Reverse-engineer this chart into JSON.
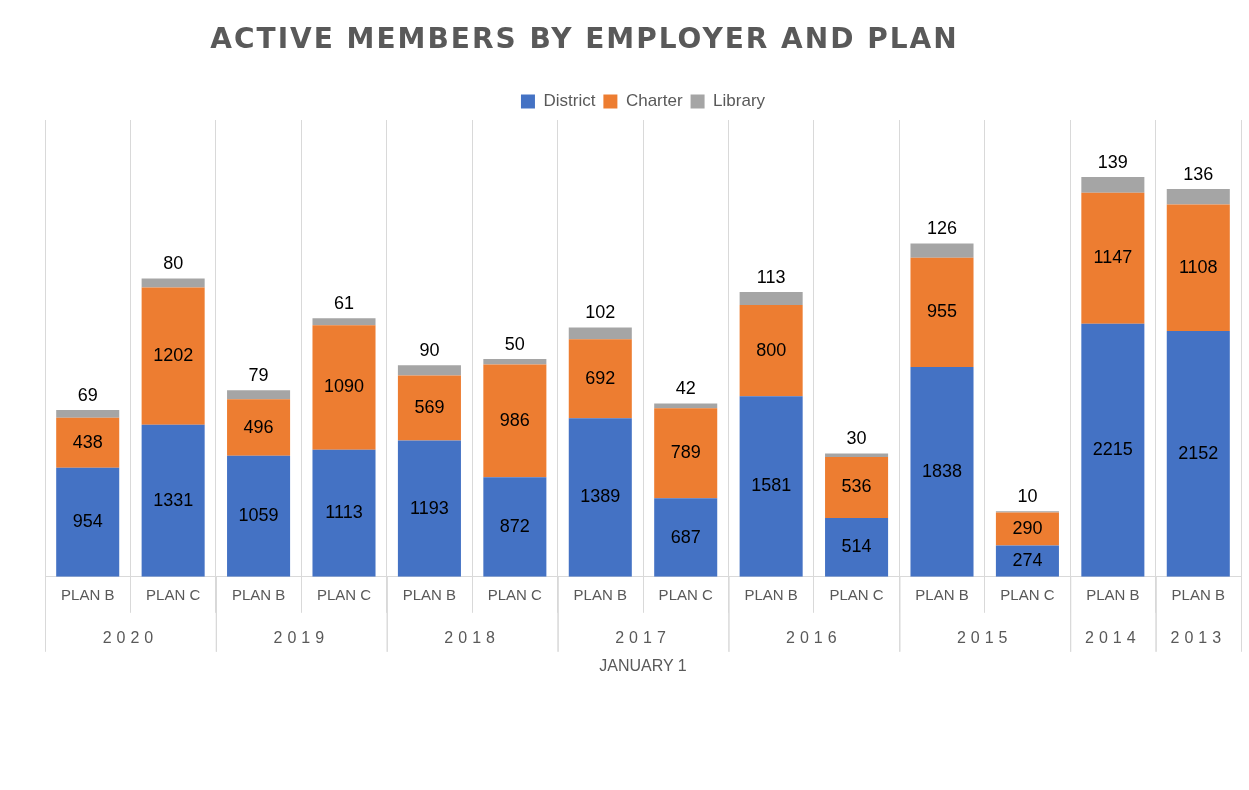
{
  "chart_data": {
    "type": "bar",
    "title": "ACTIVE MEMBERS BY EMPLOYER AND PLAN",
    "xlabel": "JANUARY 1",
    "categories": [
      "PLAN B",
      "PLAN C",
      "PLAN B",
      "PLAN C",
      "PLAN B",
      "PLAN C",
      "PLAN B",
      "PLAN C",
      "PLAN B",
      "PLAN C",
      "PLAN B",
      "PLAN C",
      "PLAN B",
      "PLAN B"
    ],
    "annotations": [
      "2020",
      "2019",
      "2018",
      "2017",
      "2016",
      "2015",
      "2014",
      "2013"
    ],
    "stacked": true,
    "data_labels": true,
    "grid": "x",
    "legend": "top",
    "series": [
      {
        "name": "District",
        "color": "#4472c4",
        "values": [
          954,
          1331,
          1059,
          1113,
          1193,
          872,
          1389,
          687,
          1581,
          514,
          1838,
          274,
          2215,
          2152
        ]
      },
      {
        "name": "Charter",
        "color": "#ed7d31",
        "values": [
          438,
          1202,
          496,
          1090,
          569,
          986,
          692,
          789,
          800,
          536,
          955,
          290,
          1147,
          1108
        ]
      },
      {
        "name": "Library",
        "color": "#a5a5a5",
        "values": [
          69,
          80,
          79,
          61,
          90,
          50,
          102,
          42,
          113,
          30,
          126,
          10,
          139,
          136
        ]
      }
    ]
  }
}
